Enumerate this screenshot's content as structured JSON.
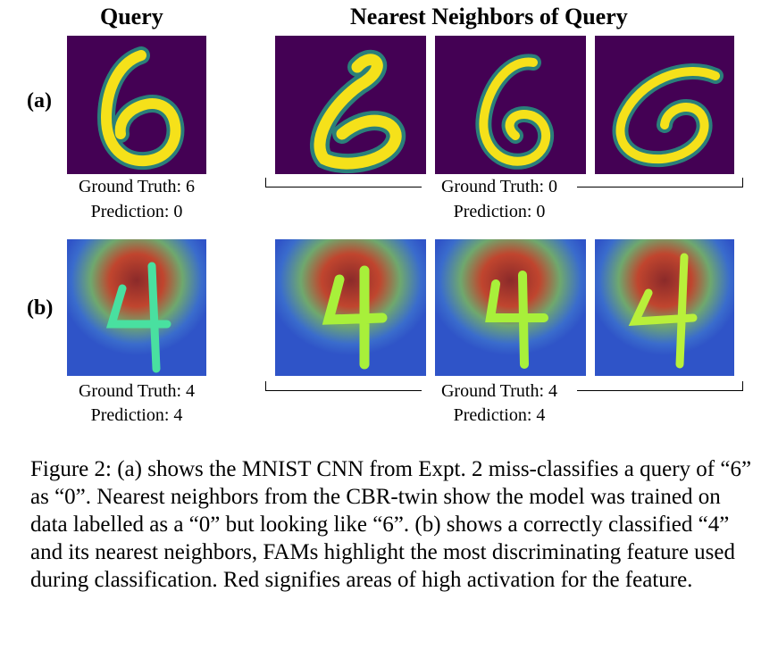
{
  "headers": {
    "query": "Query",
    "neighbors": "Nearest Neighbors of Query"
  },
  "rows": [
    {
      "label": "(a)",
      "query_truth": "Ground Truth: 6",
      "query_pred": "Prediction: 0",
      "neighbor_truth": "Ground Truth: 0",
      "neighbor_pred": "Prediction: 0"
    },
    {
      "label": "(b)",
      "query_truth": "Ground Truth: 4",
      "query_pred": "Prediction: 4",
      "neighbor_truth": "Ground Truth: 4",
      "neighbor_pred": "Prediction: 4"
    }
  ],
  "caption": "Figure 2: (a) shows the MNIST CNN from Expt. 2 miss-classifies a query of “6” as “0”. Nearest neighbors from the CBR-twin show the model was trained on data labelled as a “0” but looking like “6”. (b) shows a correctly classified “4” and its nearest neighbors, FAMs highlight the most discriminating feature used during classification. Red signifies areas of high activation for the feature.",
  "colors": {
    "mnist_bg": "#440154",
    "mnist_fg": "#f5e11a",
    "heat_bg": "#2f54c8",
    "heat_red": "#8b2a2a"
  }
}
